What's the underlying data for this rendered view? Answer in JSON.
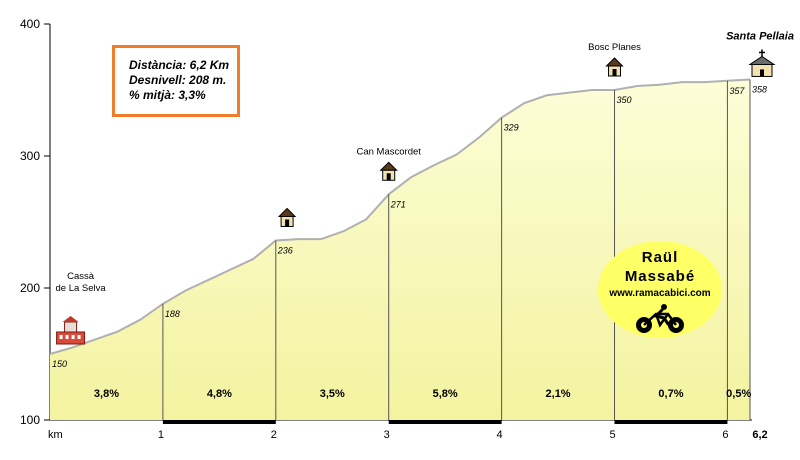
{
  "chart_data": {
    "type": "area",
    "xlabel": "km",
    "xlim": [
      0,
      6.2
    ],
    "ylim": [
      100,
      400
    ],
    "yticks": [
      100,
      200,
      300,
      400
    ],
    "xticks": [
      {
        "km": 1,
        "label": "1"
      },
      {
        "km": 2,
        "label": "2"
      },
      {
        "km": 3,
        "label": "3"
      },
      {
        "km": 4,
        "label": "4"
      },
      {
        "km": 5,
        "label": "5"
      },
      {
        "km": 6,
        "label": "6"
      },
      {
        "km": 6.2,
        "label": "6,2"
      }
    ],
    "profile": [
      [
        0,
        150
      ],
      [
        0.2,
        155
      ],
      [
        0.4,
        161
      ],
      [
        0.6,
        167
      ],
      [
        0.8,
        176
      ],
      [
        1.0,
        188
      ],
      [
        1.2,
        198
      ],
      [
        1.4,
        206
      ],
      [
        1.6,
        214
      ],
      [
        1.8,
        222
      ],
      [
        2.0,
        236
      ],
      [
        2.2,
        237
      ],
      [
        2.4,
        237
      ],
      [
        2.6,
        243
      ],
      [
        2.8,
        252
      ],
      [
        3.0,
        271
      ],
      [
        3.2,
        284
      ],
      [
        3.4,
        293
      ],
      [
        3.6,
        301
      ],
      [
        3.8,
        314
      ],
      [
        4.0,
        329
      ],
      [
        4.2,
        340
      ],
      [
        4.4,
        346
      ],
      [
        4.6,
        348
      ],
      [
        4.8,
        350
      ],
      [
        5.0,
        350
      ],
      [
        5.2,
        353
      ],
      [
        5.4,
        354
      ],
      [
        5.6,
        356
      ],
      [
        5.8,
        356
      ],
      [
        6.0,
        357
      ],
      [
        6.2,
        358
      ]
    ],
    "markers": [
      {
        "km": 0,
        "alt": 150,
        "label": "150"
      },
      {
        "km": 1,
        "alt": 188,
        "label": "188"
      },
      {
        "km": 2,
        "alt": 236,
        "label": "236"
      },
      {
        "km": 3,
        "alt": 271,
        "label": "271"
      },
      {
        "km": 4,
        "alt": 329,
        "label": "329"
      },
      {
        "km": 5,
        "alt": 350,
        "label": "350"
      },
      {
        "km": 6,
        "alt": 357,
        "label": "357"
      },
      {
        "km": 6.2,
        "alt": 358,
        "label": "358"
      }
    ],
    "gradients": [
      {
        "from": 0,
        "to": 1,
        "label": "3,8%"
      },
      {
        "from": 1,
        "to": 2,
        "label": "4,8%"
      },
      {
        "from": 2,
        "to": 3,
        "label": "3,5%"
      },
      {
        "from": 3,
        "to": 4,
        "label": "5,8%"
      },
      {
        "from": 4,
        "to": 5,
        "label": "2,1%"
      },
      {
        "from": 5,
        "to": 6,
        "label": "0,7%"
      },
      {
        "from": 6,
        "to": 6.2,
        "label": "0,5%"
      }
    ],
    "places": [
      {
        "km": 0.2,
        "alt": 150,
        "name": "Cassà\nde La Selva",
        "icon": "town-icon"
      },
      {
        "km": 2.1,
        "alt": 236,
        "name": "",
        "icon": "house-icon"
      },
      {
        "km": 3.0,
        "alt": 271,
        "name": "Can Mascordet",
        "icon": "house-icon"
      },
      {
        "km": 5.0,
        "alt": 350,
        "name": "Bosc Planes",
        "icon": "house-icon"
      },
      {
        "km": 6.2,
        "alt": 358,
        "name": "Santa Pellaia",
        "icon": "church-icon"
      }
    ],
    "colors": {
      "fill_top": "#fdfdd8",
      "fill_bottom": "#f3f3a0",
      "profile_line": "#b0b0b0",
      "infobox_border": "#f07d2a",
      "author_bg": "#ffff66"
    }
  },
  "info": {
    "distance": "Distància: 6,2 Km",
    "elevation": "Desnivell: 208 m.",
    "gradient": "% mitjà: 3,3%"
  },
  "author": {
    "name1": "Raül",
    "name2": "Massabé",
    "website": "www.ramacabici.com",
    "icon": "cyclist-icon"
  }
}
